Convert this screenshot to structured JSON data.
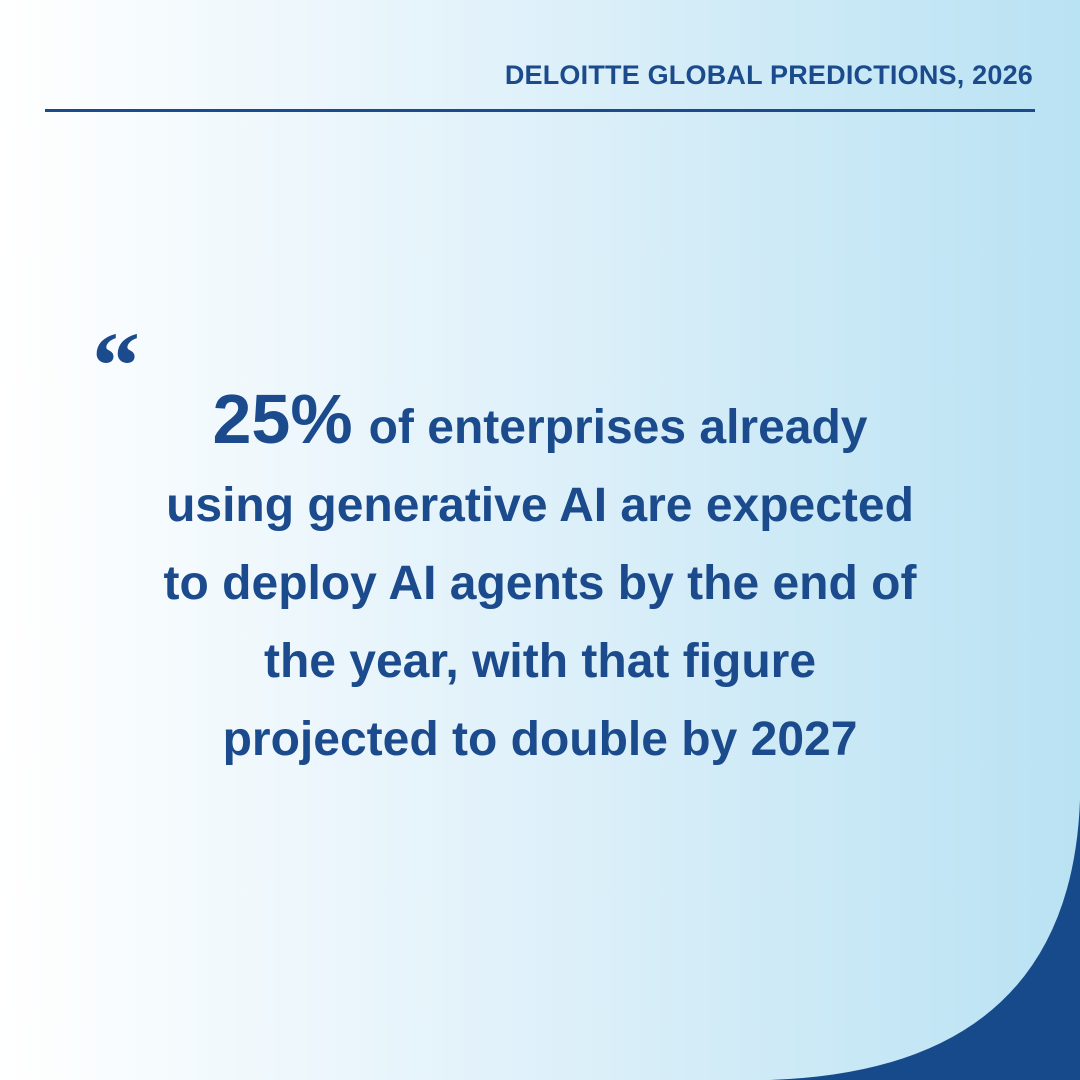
{
  "header": {
    "title": "DELOITTE GLOBAL PREDICTIONS, 2026"
  },
  "quote": {
    "mark": "“",
    "highlight": "25%",
    "lines": [
      "of enterprises already",
      "using generative AI are expected",
      "to deploy AI agents by the end of",
      "the year, with that figure",
      "projected to double by 2027"
    ]
  }
}
